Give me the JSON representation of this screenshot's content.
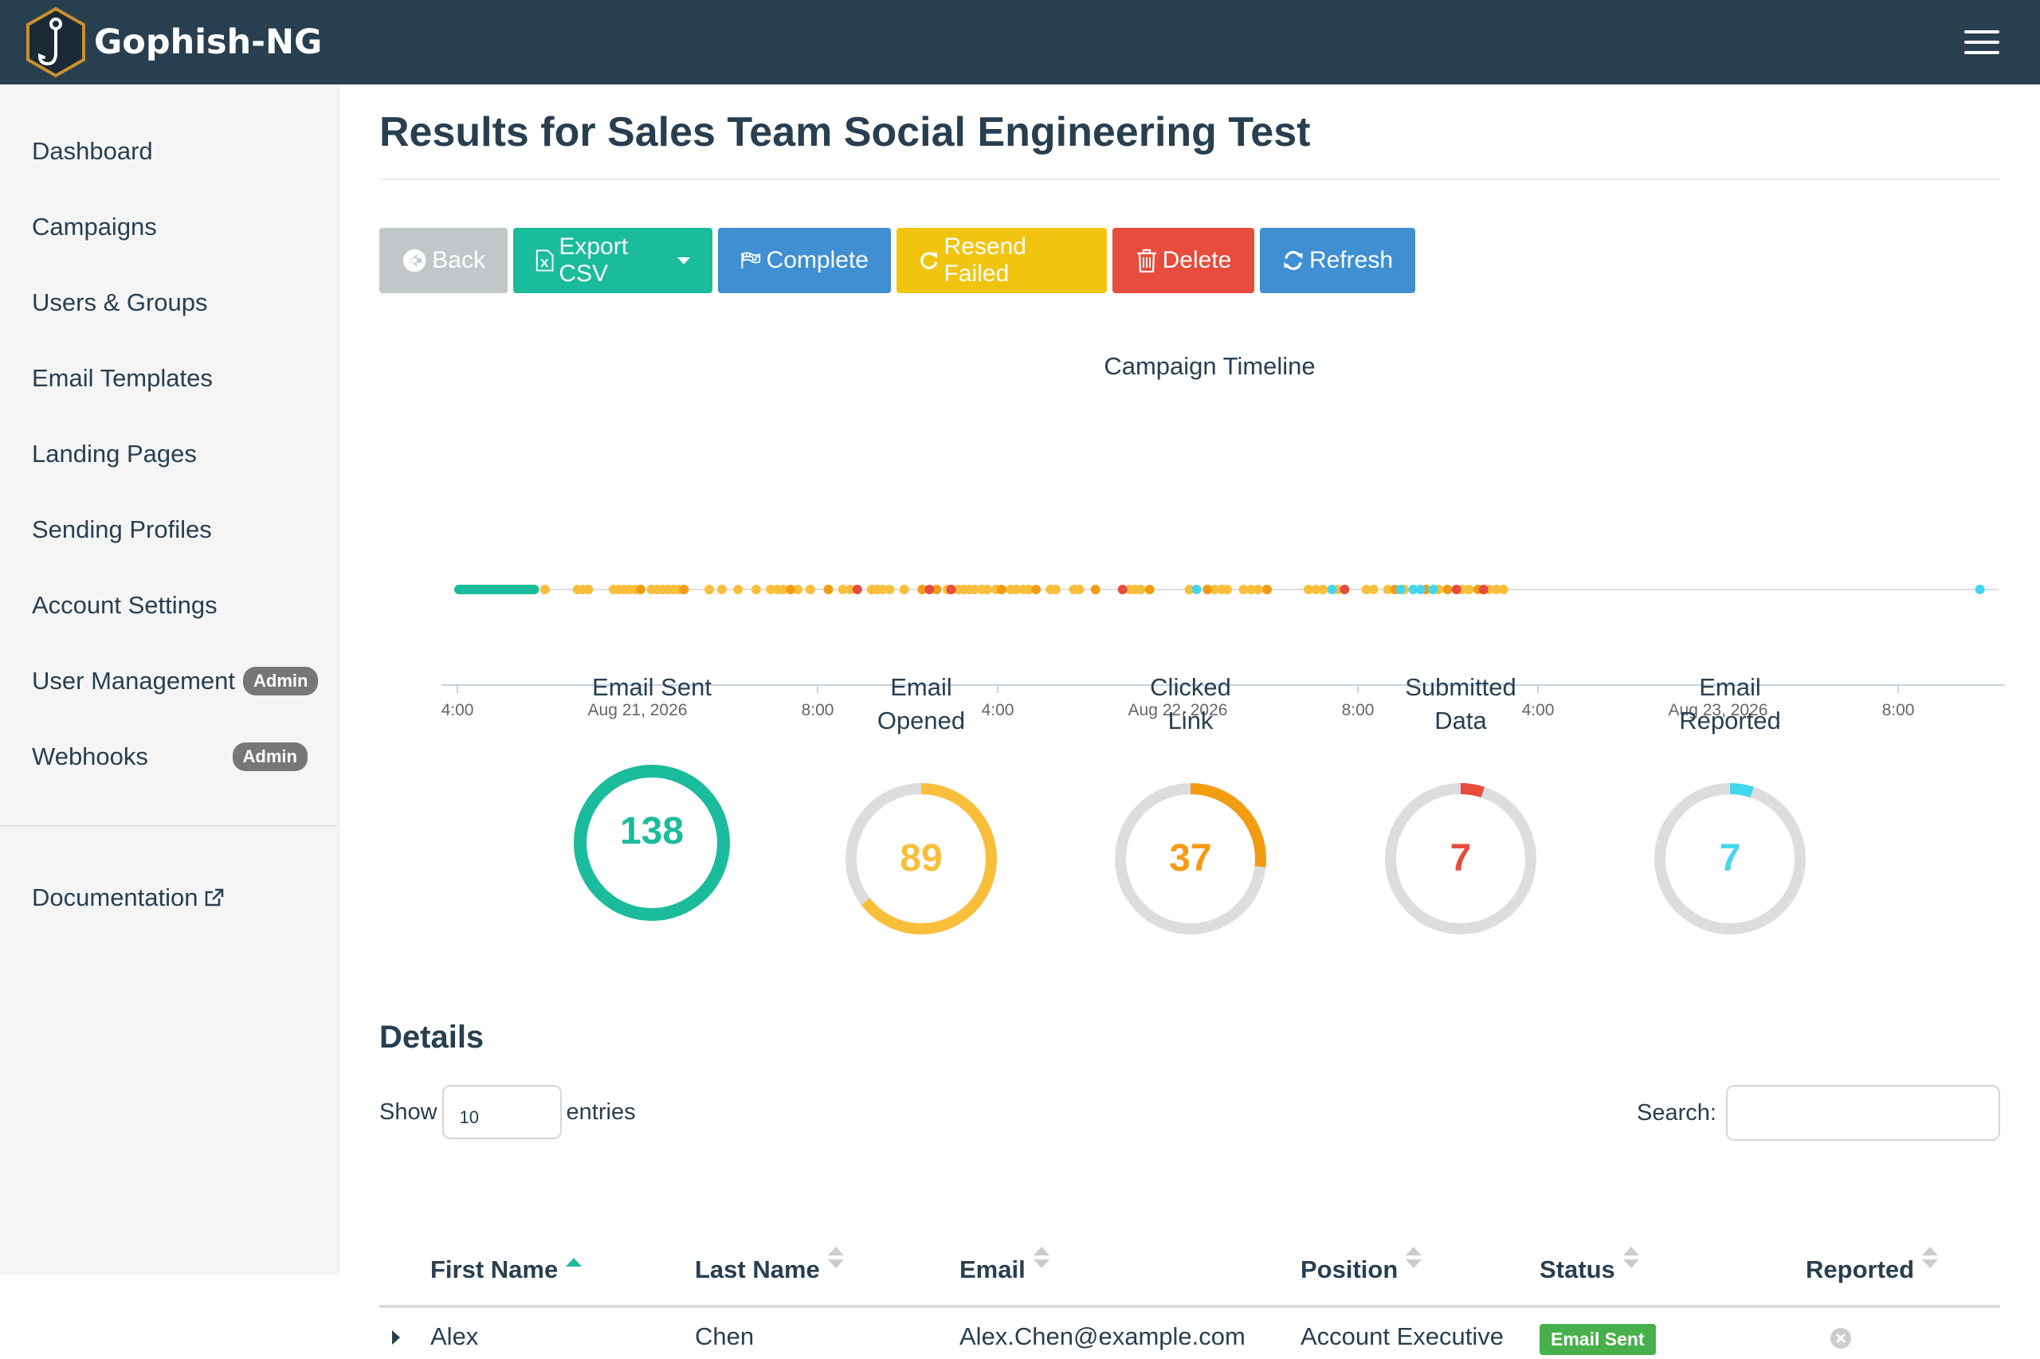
{
  "app": {
    "brand": "Gophish-NG"
  },
  "sidebar": {
    "items": [
      {
        "label": "Dashboard"
      },
      {
        "label": "Campaigns"
      },
      {
        "label": "Users & Groups"
      },
      {
        "label": "Email Templates"
      },
      {
        "label": "Landing Pages"
      },
      {
        "label": "Sending Profiles"
      },
      {
        "label": "Account Settings"
      },
      {
        "label": "User Management",
        "badge": "Admin"
      },
      {
        "label": "Webhooks",
        "badge": "Admin"
      }
    ],
    "documentation": "Documentation"
  },
  "page": {
    "title": "Results for Sales Team Social Engineering Test"
  },
  "toolbar": {
    "back": "Back",
    "export": "Export CSV",
    "complete": "Complete",
    "resend": "Resend Failed",
    "delete": "Delete",
    "refresh": "Refresh"
  },
  "chart_data": {
    "type": "scatter",
    "title": "Campaign Timeline",
    "x_tick_labels": [
      "4:00",
      "Aug 21, 2026",
      "8:00",
      "4:00",
      "Aug 22, 2026",
      "8:00",
      "4:00",
      "Aug 23, 2026",
      "8:00"
    ],
    "x_range_hours": [
      -0.2,
      84.5
    ],
    "event_colors": {
      "sent": "#1abc9c",
      "opened": "#f9bf3b",
      "clicked": "#f39c12",
      "submitted": "#e74c3c",
      "reported": "#45d6ef"
    },
    "sent_range_hours": [
      0,
      3.9
    ],
    "events": {
      "opened": [
        4.5,
        6.3,
        6.6,
        6.9,
        8.3,
        8.6,
        8.9,
        9.2,
        9.5,
        10.4,
        10.7,
        11.0,
        11.3,
        11.6,
        11.9,
        13.6,
        14.3,
        15.2,
        16.2,
        17.0,
        17.4,
        17.7,
        18.5,
        19.2,
        21.0,
        21.4,
        22.6,
        22.9,
        23.2,
        23.6,
        24.4,
        26.8,
        27.4,
        27.7,
        28.0,
        28.3,
        28.7,
        29.0,
        29.5,
        30.3,
        30.6,
        31.0,
        31.3,
        32.5,
        32.8,
        33.8,
        34.1,
        36.9,
        37.2,
        37.5,
        40.2,
        41.6,
        42.0,
        42.3,
        43.2,
        43.6,
        44.0,
        46.8,
        47.2,
        47.6,
        48.4,
        50.0,
        50.4,
        51.2,
        52.1,
        54.0,
        55.3,
        55.7,
        56.8,
        57.2,
        57.6
      ],
      "clicked": [
        9.8,
        12.2,
        18.1,
        20.2,
        25.4,
        26.2,
        29.8,
        31.7,
        35.0,
        38.0,
        41.2,
        44.5,
        51.6,
        53.3,
        54.5,
        56.2
      ],
      "submitted": [
        21.8,
        27.0,
        36.5,
        48.8,
        55.0,
        56.5,
        25.8
      ],
      "reported": [
        40.6,
        48.1,
        51.9,
        52.6,
        53.0,
        53.7,
        84.0
      ]
    }
  },
  "stats": [
    {
      "label_lines": [
        "Email Sent"
      ],
      "value": "138",
      "fraction": 1.0,
      "color": "#1abc9c"
    },
    {
      "label_lines": [
        "Email",
        "Opened"
      ],
      "value": "89",
      "fraction": 0.645,
      "color": "#f9bf3b"
    },
    {
      "label_lines": [
        "Clicked",
        "Link"
      ],
      "value": "37",
      "fraction": 0.268,
      "color": "#f39c12"
    },
    {
      "label_lines": [
        "Submitted",
        "Data"
      ],
      "value": "7",
      "fraction": 0.051,
      "color": "#e74c3c"
    },
    {
      "label_lines": [
        "Email",
        "Reported"
      ],
      "value": "7",
      "fraction": 0.051,
      "color": "#45d6ef"
    }
  ],
  "details": {
    "title": "Details",
    "show_label": "Show",
    "entries_value": "10",
    "entries_label": "entries",
    "search_label": "Search:",
    "columns": [
      "First Name",
      "Last Name",
      "Email",
      "Position",
      "Status",
      "Reported"
    ],
    "rows": [
      {
        "first": "Alex",
        "last": "Chen",
        "email": "Alex.Chen@example.com",
        "position": "Account Executive",
        "status": "Email Sent"
      }
    ]
  }
}
